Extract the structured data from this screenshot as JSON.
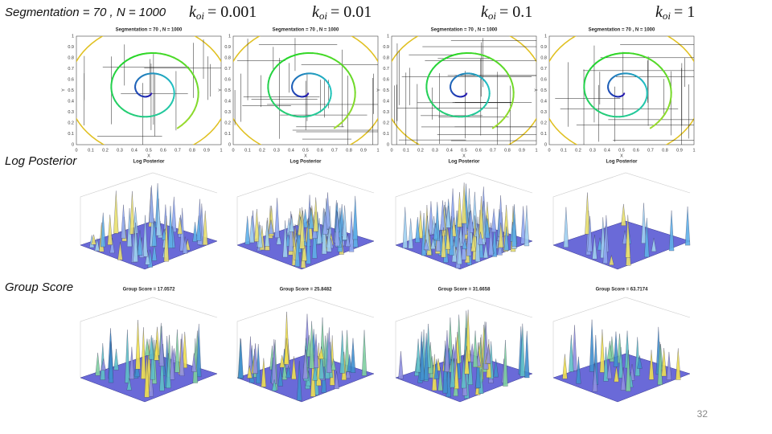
{
  "header": {
    "label": "Segmentation = 70 , N = 1000",
    "columns": [
      {
        "symbol": "k",
        "subscript": "oi",
        "value": "= 0.001"
      },
      {
        "symbol": "k",
        "subscript": "oi",
        "value": "= 0.01"
      },
      {
        "symbol": "k",
        "subscript": "oi",
        "value": "= 0.1"
      },
      {
        "symbol": "k",
        "subscript": "oi",
        "value": "= 1"
      }
    ]
  },
  "row_labels": [
    "Log Posterior",
    "Group Score"
  ],
  "panels": [
    {
      "title": "Segmentation = 70 , N = 1000",
      "caption": "Log Posterior",
      "group_score": "Group Score = 17.0572"
    },
    {
      "title": "Segmentation = 70 , N = 1000",
      "caption": "Log Posterior",
      "group_score": "Group Score = 25.8482"
    },
    {
      "title": "Segmentation = 70 , N = 1000",
      "caption": "Log Posterior",
      "group_score": "Group Score = 31.6658"
    },
    {
      "title": "Segmentation = 70 , N = 1000",
      "caption": "Log Posterior",
      "group_score": "Group Score = 63.7174"
    }
  ],
  "axis": {
    "ticks": [
      "0",
      "0.1",
      "0.2",
      "0.3",
      "0.4",
      "0.5",
      "0.6",
      "0.7",
      "0.8",
      "0.9",
      "1"
    ],
    "x_label": "X",
    "y_label": "Y"
  },
  "page_number": "32"
}
